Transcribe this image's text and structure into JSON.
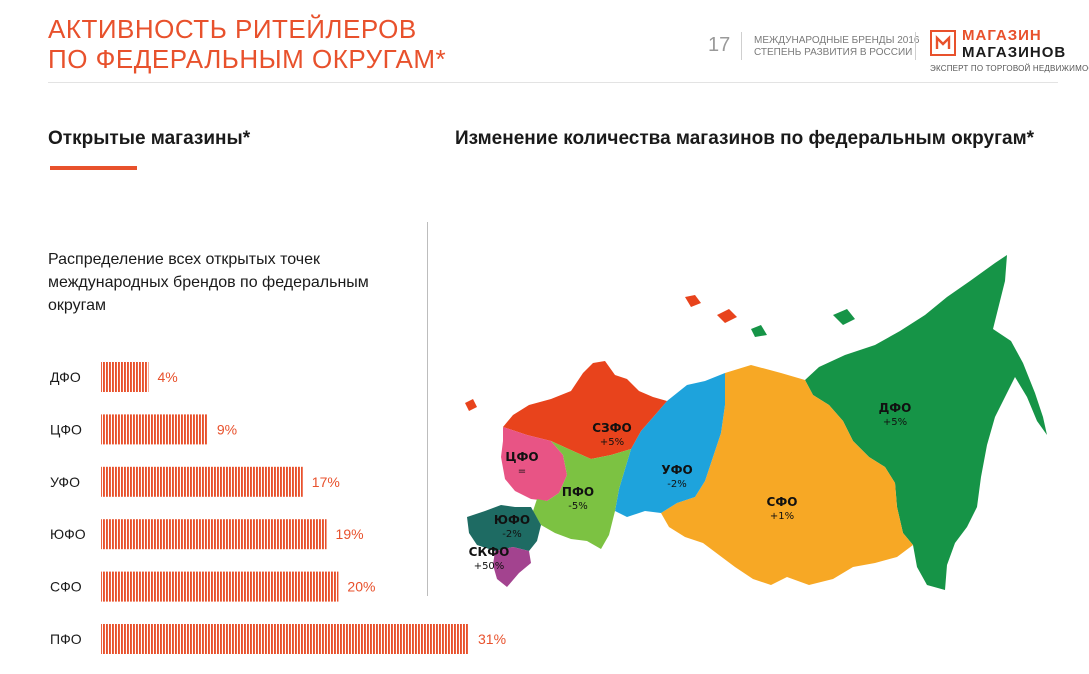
{
  "header": {
    "title_line1": "АКТИВНОСТЬ РИТЕЙЛЕРОВ",
    "title_line2": "ПО ФЕДЕРАЛЬНЫМ ОКРУГАМ*",
    "page_number": "17",
    "report_line1": "МЕЖДУНАРОДНЫЕ БРЕНДЫ 2016",
    "report_line2": "СТЕПЕНЬ РАЗВИТИЯ В РОССИИ",
    "logo_line1": "МАГАЗИН",
    "logo_line2": "МАГАЗИНОВ",
    "logo_tagline": "ЭКСПЕРТ ПО ТОРГОВОЙ НЕДВИЖИМОСТИ"
  },
  "left": {
    "heading": "Открытые магазины*",
    "description": "Распределение всех открытых точек международных брендов по федеральным округам"
  },
  "right": {
    "heading": "Изменение количества магазинов по федеральным округам*"
  },
  "colors": {
    "accent": "#e8512c",
    "bar": "#e8512c"
  },
  "chart_data": [
    {
      "type": "bar",
      "orientation": "horizontal",
      "title": "",
      "categories": [
        "ДФО",
        "ЦФО",
        "УФО",
        "ЮФО",
        "СФО",
        "ПФО"
      ],
      "values": [
        4,
        9,
        17,
        19,
        20,
        31
      ],
      "value_labels": [
        "4%",
        "9%",
        "17%",
        "19%",
        "20%",
        "31%"
      ],
      "unit": "%",
      "xlim": [
        0,
        31
      ],
      "grid": false,
      "legend": "none"
    },
    {
      "type": "map",
      "regions": [
        {
          "id": "szfo",
          "name": "СЗФО",
          "change": "+5%",
          "color": "#e8431c"
        },
        {
          "id": "cfo",
          "name": "ЦФО",
          "change": "=",
          "color": "#e85485"
        },
        {
          "id": "pfo",
          "name": "ПФО",
          "change": "-5%",
          "color": "#7cc242"
        },
        {
          "id": "ufo",
          "name": "ЮФО",
          "change": "-2%",
          "color": "#1e6b63"
        },
        {
          "id": "skfo",
          "name": "СКФО",
          "change": "+50%",
          "color": "#a3438f"
        },
        {
          "id": "urfo",
          "name": "УФО",
          "change": "-2%",
          "color": "#1ea3dc"
        },
        {
          "id": "sfo",
          "name": "СФО",
          "change": "+1%",
          "color": "#f7a825"
        },
        {
          "id": "dfo",
          "name": "ДФО",
          "change": "+5%",
          "color": "#169447"
        }
      ]
    }
  ]
}
